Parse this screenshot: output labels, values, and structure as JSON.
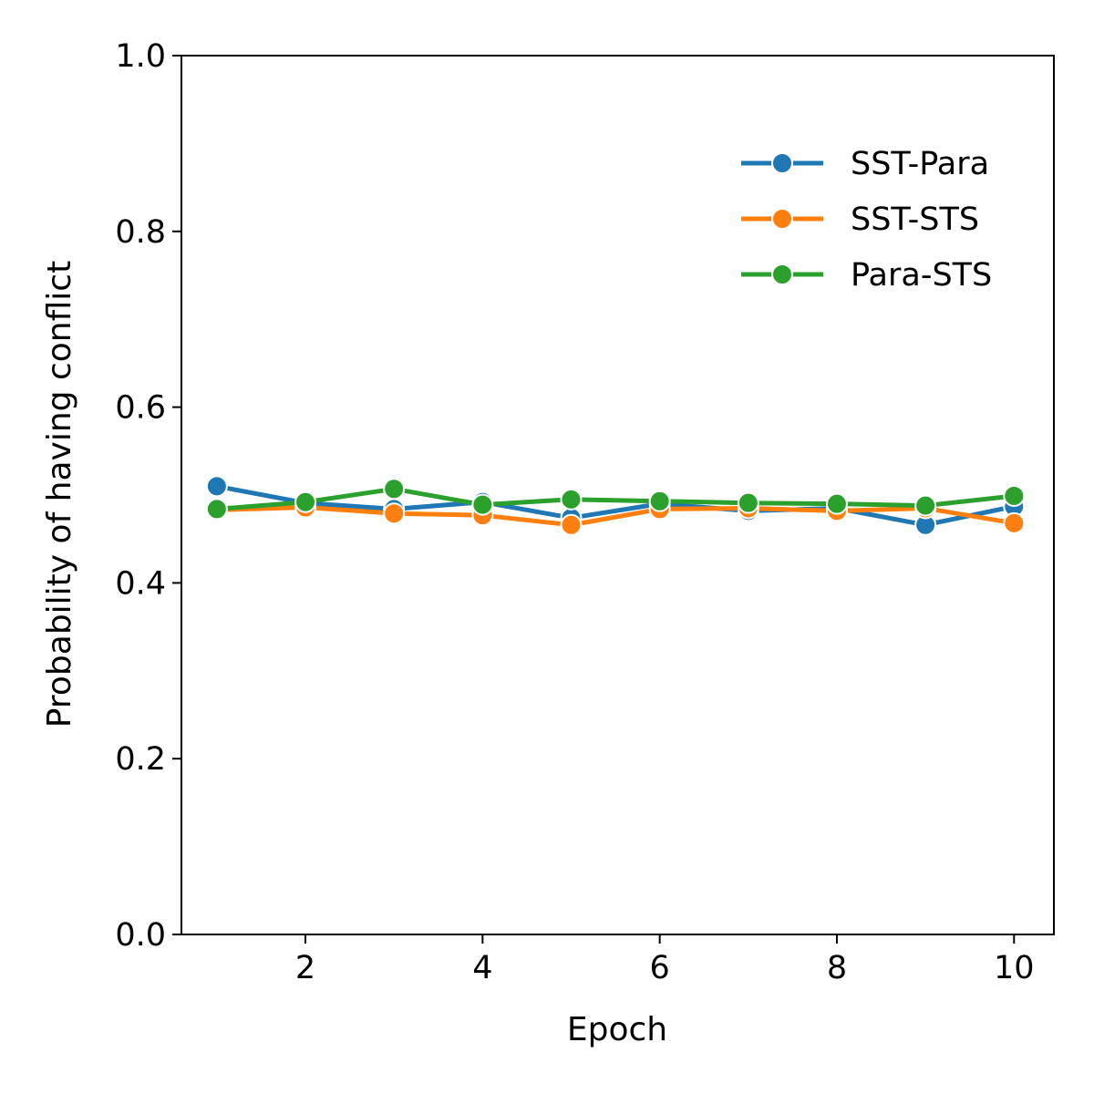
{
  "chart_data": {
    "type": "line",
    "title": "",
    "xlabel": "Epoch",
    "ylabel": "Probability of having conflict",
    "xlim": [
      0.6,
      10.45
    ],
    "ylim": [
      0.0,
      1.0
    ],
    "x_ticks": [
      2,
      4,
      6,
      8,
      10
    ],
    "x_tick_labels": [
      "2",
      "4",
      "6",
      "8",
      "10"
    ],
    "y_ticks": [
      0.0,
      0.2,
      0.4,
      0.6,
      0.8,
      1.0
    ],
    "y_tick_labels": [
      "0.0",
      "0.2",
      "0.4",
      "0.6",
      "0.8",
      "1.0"
    ],
    "grid": false,
    "legend_position": "upper-right",
    "x": [
      1,
      2,
      3,
      4,
      5,
      6,
      7,
      8,
      9,
      10
    ],
    "series": [
      {
        "name": "SST-Para",
        "color": "#1f77b4",
        "values": [
          0.51,
          0.491,
          0.484,
          0.492,
          0.474,
          0.49,
          0.482,
          0.485,
          0.466,
          0.487
        ]
      },
      {
        "name": "SST-STS",
        "color": "#ff7f0e",
        "values": [
          0.483,
          0.486,
          0.479,
          0.477,
          0.466,
          0.484,
          0.485,
          0.482,
          0.485,
          0.468
        ]
      },
      {
        "name": "Para-STS",
        "color": "#2ca02c",
        "values": [
          0.484,
          0.492,
          0.507,
          0.489,
          0.495,
          0.493,
          0.491,
          0.49,
          0.488,
          0.499
        ]
      }
    ]
  }
}
